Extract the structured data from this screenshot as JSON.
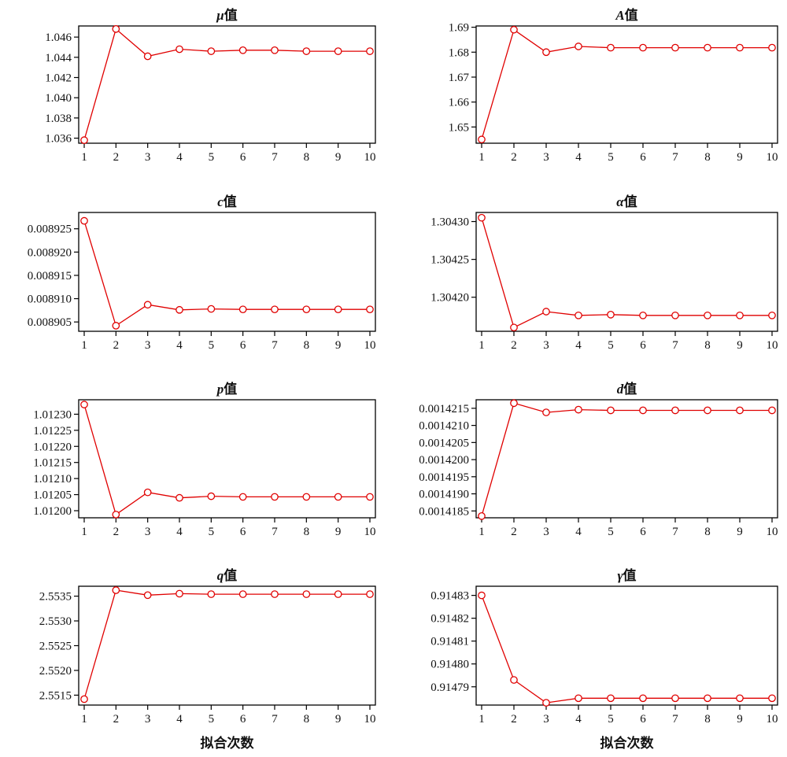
{
  "style": {
    "line_color": "#e00000",
    "marker": "open-circle",
    "marker_color": "#e00000",
    "axis_color": "#000000"
  },
  "x_axis_title": "拟合次数",
  "chart_data": [
    {
      "type": "line",
      "title_var": "μ",
      "title_suffix": "值",
      "x": [
        1,
        2,
        3,
        4,
        5,
        6,
        7,
        8,
        9,
        10
      ],
      "values": [
        1.0358,
        1.0468,
        1.0441,
        1.0448,
        1.0446,
        1.0447,
        1.0447,
        1.0446,
        1.0446,
        1.0446
      ],
      "yticks": [
        "1.036",
        "1.038",
        "1.040",
        "1.042",
        "1.044",
        "1.046"
      ],
      "ylim": [
        1.0355,
        1.0471
      ],
      "xlabel": ""
    },
    {
      "type": "line",
      "title_var": "A",
      "title_suffix": "值",
      "x": [
        1,
        2,
        3,
        4,
        5,
        6,
        7,
        8,
        9,
        10
      ],
      "values": [
        1.645,
        1.689,
        1.68,
        1.6823,
        1.6818,
        1.6818,
        1.6818,
        1.6818,
        1.6818,
        1.6818
      ],
      "yticks": [
        "1.65",
        "1.66",
        "1.67",
        "1.68",
        "1.69"
      ],
      "ylim": [
        1.6435,
        1.6905
      ],
      "xlabel": ""
    },
    {
      "type": "line",
      "title_var": "c",
      "title_suffix": "值",
      "x": [
        1,
        2,
        3,
        4,
        5,
        6,
        7,
        8,
        9,
        10
      ],
      "values": [
        0.0089267,
        0.0089042,
        0.0089087,
        0.0089076,
        0.0089078,
        0.0089077,
        0.0089077,
        0.0089077,
        0.0089077,
        0.0089077
      ],
      "yticks": [
        "0.008905",
        "0.008910",
        "0.008915",
        "0.008920",
        "0.008925"
      ],
      "ylim": [
        0.008903,
        0.0089285
      ],
      "xlabel": ""
    },
    {
      "type": "line",
      "title_var": "α",
      "title_suffix": "值",
      "x": [
        1,
        2,
        3,
        4,
        5,
        6,
        7,
        8,
        9,
        10
      ],
      "values": [
        1.304305,
        1.30416,
        1.304181,
        1.304176,
        1.304177,
        1.304176,
        1.304176,
        1.304176,
        1.304176,
        1.304176
      ],
      "yticks": [
        "1.30420",
        "1.30425",
        "1.30430"
      ],
      "ylim": [
        1.304155,
        1.304312
      ],
      "xlabel": ""
    },
    {
      "type": "line",
      "title_var": "p",
      "title_suffix": "值",
      "x": [
        1,
        2,
        3,
        4,
        5,
        6,
        7,
        8,
        9,
        10
      ],
      "values": [
        1.01233,
        1.011988,
        1.012057,
        1.01204,
        1.012045,
        1.012043,
        1.012043,
        1.012043,
        1.012043,
        1.012043
      ],
      "yticks": [
        "1.01200",
        "1.01205",
        "1.01210",
        "1.01215",
        "1.01220",
        "1.01225",
        "1.01230"
      ],
      "ylim": [
        1.011978,
        1.012345
      ],
      "xlabel": ""
    },
    {
      "type": "line",
      "title_var": "d",
      "title_suffix": "值",
      "x": [
        1,
        2,
        3,
        4,
        5,
        6,
        7,
        8,
        9,
        10
      ],
      "values": [
        0.00141835,
        0.00142165,
        0.00142138,
        0.00142146,
        0.00142144,
        0.00142144,
        0.00142144,
        0.00142144,
        0.00142144,
        0.00142144
      ],
      "yticks": [
        "0.0014185",
        "0.0014190",
        "0.0014195",
        "0.0014200",
        "0.0014205",
        "0.0014210",
        "0.0014215"
      ],
      "ylim": [
        0.0014183,
        0.00142175
      ],
      "xlabel": ""
    },
    {
      "type": "line",
      "title_var": "q",
      "title_suffix": "值",
      "x": [
        1,
        2,
        3,
        4,
        5,
        6,
        7,
        8,
        9,
        10
      ],
      "values": [
        2.55142,
        2.55362,
        2.55352,
        2.55355,
        2.55354,
        2.55354,
        2.55354,
        2.55354,
        2.55354,
        2.55354
      ],
      "yticks": [
        "2.5515",
        "2.5520",
        "2.5525",
        "2.5530",
        "2.5535"
      ],
      "ylim": [
        2.5513,
        2.5537
      ],
      "xlabel": "拟合次数"
    },
    {
      "type": "line",
      "title_var": "γ",
      "title_suffix": "值",
      "x": [
        1,
        2,
        3,
        4,
        5,
        6,
        7,
        8,
        9,
        10
      ],
      "values": [
        0.91483,
        0.914793,
        0.914783,
        0.914785,
        0.914785,
        0.914785,
        0.914785,
        0.914785,
        0.914785,
        0.914785
      ],
      "yticks": [
        "0.91479",
        "0.91480",
        "0.91481",
        "0.91482",
        "0.91483"
      ],
      "ylim": [
        0.914782,
        0.914834
      ],
      "xlabel": "拟合次数"
    }
  ]
}
